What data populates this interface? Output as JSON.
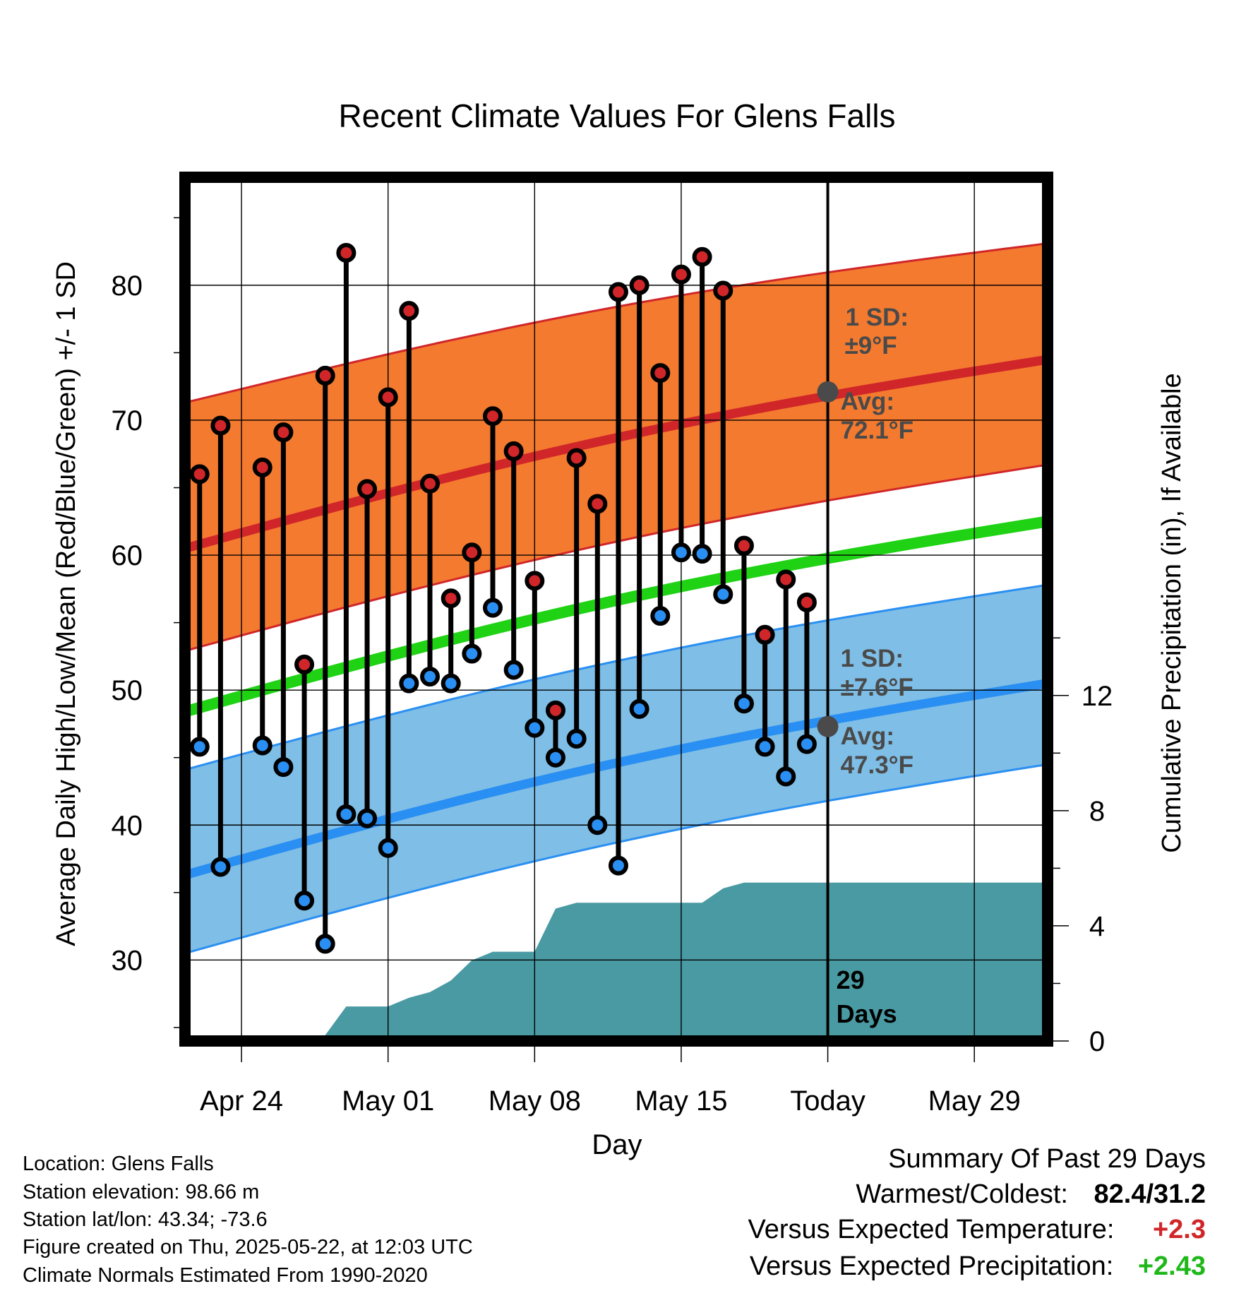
{
  "chart_data": {
    "type": "line",
    "title": "Recent Climate Values For Glens Falls",
    "xlabel": "Day",
    "ylabel": "Average Daily High/Low/Mean (Red/Blue/Green) +/- 1 SD",
    "ylabel_right": "Cumulative Precipitation (in), If Available",
    "x_tick_labels": [
      "Apr 24",
      "May 01",
      "May 08",
      "May 15",
      "Today",
      "May 29"
    ],
    "x_tick_days": [
      2,
      9,
      16,
      23,
      30,
      37
    ],
    "xlim_days": [
      -0.7,
      40.5
    ],
    "ylim": [
      24,
      88
    ],
    "y_ticks": [
      30,
      40,
      50,
      60,
      70,
      80
    ],
    "y2lim": [
      0,
      30
    ],
    "y2_ticks": [
      0,
      4,
      8,
      12
    ],
    "grid": true,
    "days": [
      {
        "day": 0,
        "high": 66.0,
        "low": 45.8
      },
      {
        "day": 1,
        "high": 69.6,
        "low": 36.9
      },
      {
        "day": 3,
        "high": 66.5,
        "low": 45.9
      },
      {
        "day": 4,
        "high": 69.1,
        "low": 44.3
      },
      {
        "day": 5,
        "high": 51.9,
        "low": 34.4
      },
      {
        "day": 6,
        "high": 73.3,
        "low": 31.2
      },
      {
        "day": 7,
        "high": 82.4,
        "low": 40.8
      },
      {
        "day": 8,
        "high": 64.9,
        "low": 40.5
      },
      {
        "day": 9,
        "high": 71.7,
        "low": 38.3
      },
      {
        "day": 10,
        "high": 78.1,
        "low": 50.5
      },
      {
        "day": 11,
        "high": 65.3,
        "low": 51.0
      },
      {
        "day": 12,
        "high": 56.8,
        "low": 50.5
      },
      {
        "day": 13,
        "high": 60.2,
        "low": 52.7
      },
      {
        "day": 14,
        "high": 70.3,
        "low": 56.1
      },
      {
        "day": 15,
        "high": 67.7,
        "low": 51.5
      },
      {
        "day": 16,
        "high": 58.1,
        "low": 47.2
      },
      {
        "day": 17,
        "high": 48.5,
        "low": 45.0
      },
      {
        "day": 18,
        "high": 67.2,
        "low": 46.4
      },
      {
        "day": 19,
        "high": 63.8,
        "low": 40.0
      },
      {
        "day": 20,
        "high": 79.5,
        "low": 37.0
      },
      {
        "day": 21,
        "high": 80.0,
        "low": 48.6
      },
      {
        "day": 22,
        "high": 73.5,
        "low": 55.5
      },
      {
        "day": 23,
        "high": 80.8,
        "low": 60.2
      },
      {
        "day": 24,
        "high": 82.1,
        "low": 60.1
      },
      {
        "day": 25,
        "high": 79.6,
        "low": 57.1
      },
      {
        "day": 26,
        "high": 60.7,
        "low": 49.0
      },
      {
        "day": 27,
        "high": 54.1,
        "low": 45.8
      },
      {
        "day": 28,
        "high": 58.2,
        "low": 43.6
      },
      {
        "day": 29,
        "high": 56.5,
        "low": 46.0
      }
    ],
    "normals": {
      "days": [
        -0.7,
        40.5
      ],
      "avg_high": [
        60.5,
        74.5
      ],
      "high_upper": [
        71.3,
        83.1
      ],
      "high_lower": [
        52.9,
        66.7
      ],
      "avg_mean": [
        48.4,
        62.5
      ],
      "avg_low": [
        36.3,
        50.5
      ],
      "low_upper": [
        44.1,
        57.8
      ],
      "low_lower": [
        30.5,
        44.5
      ]
    },
    "precipitation": {
      "days": [
        3.6,
        4.6,
        6.0,
        7.0,
        8.0,
        9.0,
        10.0,
        11.0,
        12.0,
        13.0,
        14.0,
        15.0,
        16.0,
        17.0,
        18.0,
        19.0,
        20.0,
        21.0,
        22.0,
        23.0,
        24.0,
        25.0,
        26.0,
        27.0,
        28.0,
        29.0,
        30.0,
        40.5
      ],
      "values": [
        0.0,
        0.15,
        0.2,
        1.2,
        1.2,
        1.2,
        1.5,
        1.7,
        2.1,
        2.8,
        3.1,
        3.1,
        3.1,
        4.6,
        4.8,
        4.8,
        4.8,
        4.8,
        4.8,
        4.8,
        4.8,
        5.3,
        5.5,
        5.5,
        5.5,
        5.5,
        5.5,
        5.5
      ]
    },
    "colors": {
      "high_band": "#f47a2f",
      "high_line": "#d0262a",
      "low_band": "#7fbee6",
      "low_line": "#2a8ff2",
      "mean_line": "#1fd214",
      "precip": "#4a9aa3",
      "high_marker": "#d0262a",
      "low_marker": "#2a8ff2",
      "annotation": "#4a4a4a"
    },
    "today_day": 30,
    "annotations": {
      "high_sd_label": "1 SD:",
      "high_sd_value": "±9°F",
      "high_avg_label": "Avg:",
      "high_avg_value": "72.1°F",
      "high_avg": 72.1,
      "low_sd_label": "1 SD:",
      "low_sd_value": "±7.6°F",
      "low_avg_label": "Avg:",
      "low_avg_value": "47.3°F",
      "low_avg": 47.3,
      "days_count": "29",
      "days_word": "Days"
    }
  },
  "meta": {
    "location": "Location: Glens Falls",
    "elevation": "Station elevation: 98.66 m",
    "latlon": "Station lat/lon: 43.34; -73.6",
    "created": "Figure created on Thu, 2025-05-22, at 12:03 UTC",
    "normals": "Climate Normals Estimated From 1990-2020"
  },
  "summary": {
    "heading": "Summary Of Past 29 Days",
    "warm_cold_label": "Warmest/Coldest:",
    "warm_cold_value": "82.4/31.2",
    "temp_label": "Versus Expected Temperature:",
    "temp_value": "+2.3",
    "temp_color": "#d0262a",
    "precip_label": "Versus Expected Precipitation:",
    "precip_value": "+2.43",
    "precip_color": "#1fb81a"
  }
}
